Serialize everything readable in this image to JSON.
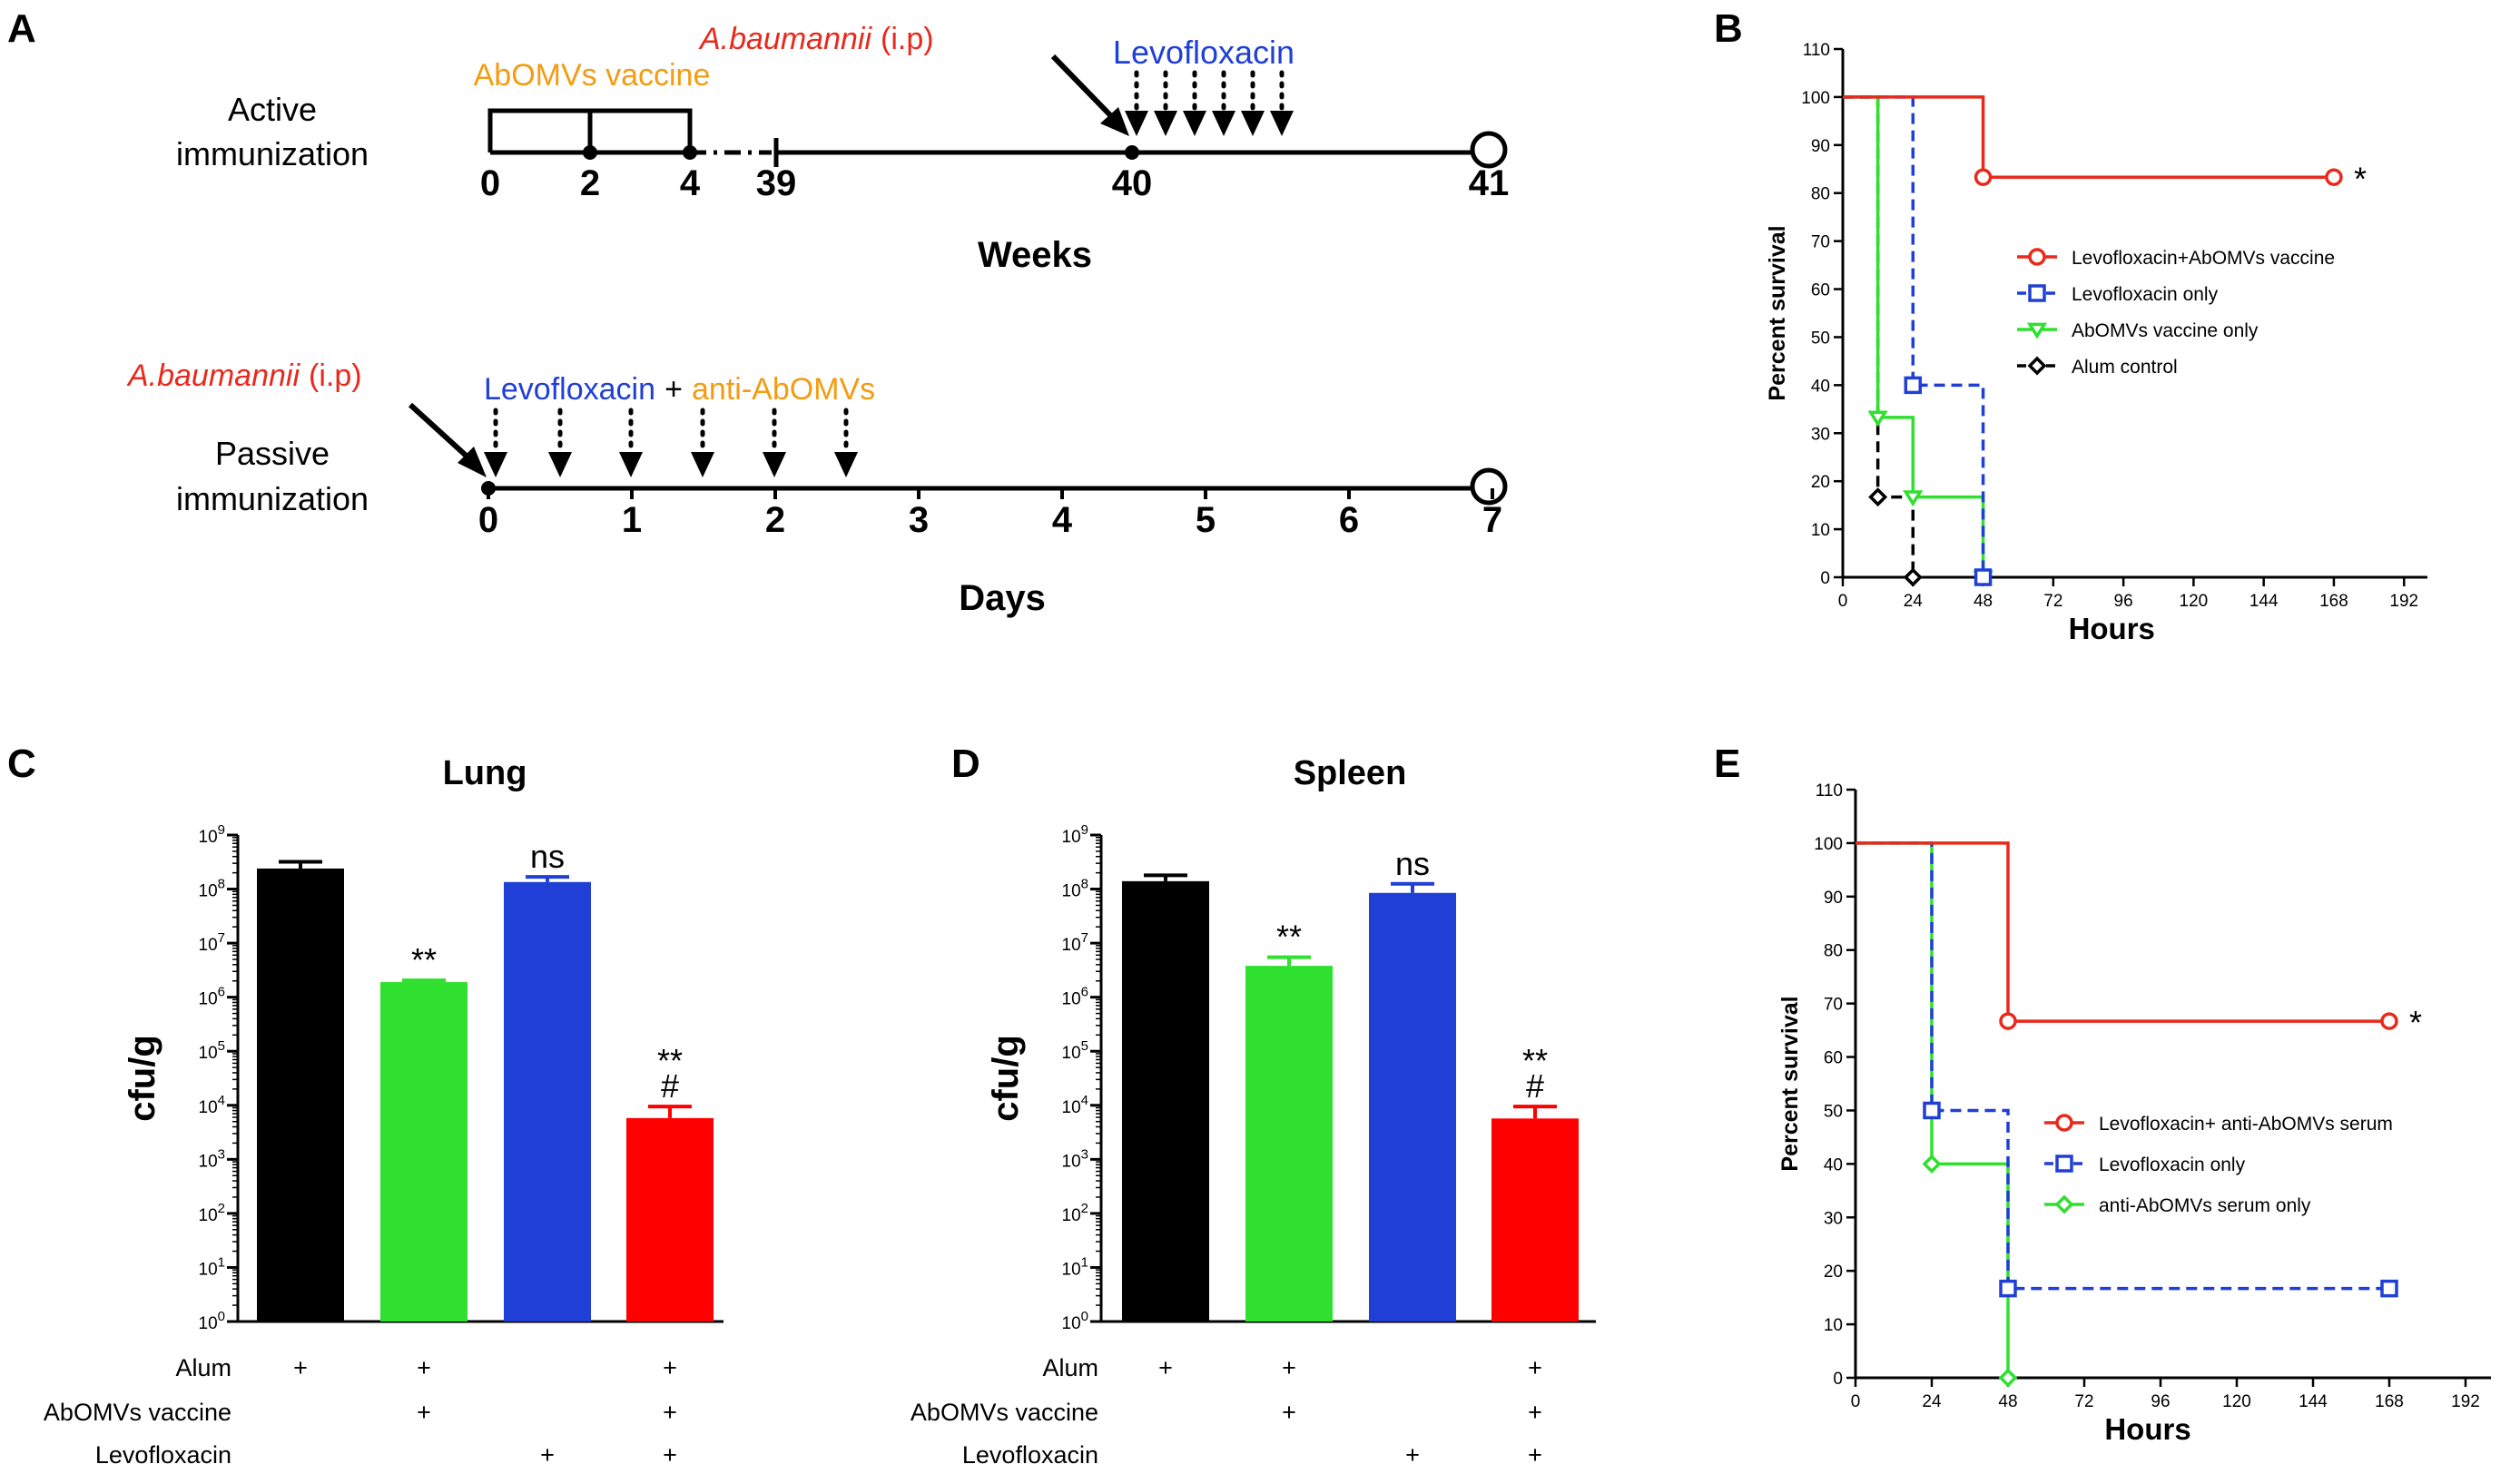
{
  "panel_labels": [
    "A",
    "B",
    "C",
    "D",
    "E"
  ],
  "timeline_active": {
    "label_line1": "Active",
    "label_line2": "immunization",
    "vaccine_label": "AbOMVs vaccine",
    "challenge_label": "A.baumannii",
    "challenge_route": "(i.p)",
    "treatment_label": "Levofloxacin",
    "ticks": [
      "0",
      "2",
      "4",
      "39",
      "40",
      "41"
    ],
    "axis_title": "Weeks",
    "colors": {
      "vaccine": "#F39C12",
      "challenge": "#E8291C",
      "treatment": "#1F3FD6"
    }
  },
  "timeline_passive": {
    "label_line1": "Passive",
    "label_line2": "immunization",
    "challenge_label": "A.baumannii",
    "challenge_route": "(i.p)",
    "treatment_label": "Levofloxacin",
    "plus": "+",
    "serum_label": "anti-AbOMVs",
    "ticks": [
      "0",
      "1",
      "2",
      "3",
      "4",
      "5",
      "6",
      "7"
    ],
    "axis_title": "Days"
  },
  "chart_data": [
    {
      "panel": "B",
      "type": "line",
      "subtype": "kaplan-meier",
      "xlabel": "Hours",
      "ylabel": "Percent survival",
      "xlim": [
        0,
        200
      ],
      "ylim": [
        0,
        110
      ],
      "xticks": [
        0,
        24,
        48,
        72,
        96,
        120,
        144,
        168,
        192
      ],
      "yticks": [
        0,
        10,
        20,
        30,
        40,
        50,
        60,
        70,
        80,
        90,
        100,
        110
      ],
      "legend_position": "center-right",
      "annotation": "*",
      "series": [
        {
          "name": "Levofloxacin+AbOMVs vaccine",
          "color": "#E8291C",
          "marker": "circle",
          "dash": false,
          "steps": [
            [
              0,
              100
            ],
            [
              48,
              83.3
            ],
            [
              168,
              83.3
            ]
          ],
          "marks": [
            [
              48,
              83.3
            ],
            [
              168,
              83.3
            ]
          ]
        },
        {
          "name": "Levofloxacin only",
          "color": "#1F3FD6",
          "marker": "square",
          "dash": true,
          "steps": [
            [
              0,
              100
            ],
            [
              24,
              40
            ],
            [
              48,
              0
            ]
          ],
          "marks": [
            [
              24,
              40
            ],
            [
              48,
              0
            ]
          ]
        },
        {
          "name": "AbOMVs vaccine only",
          "color": "#2FE02F",
          "marker": "triangle-down",
          "dash": false,
          "steps": [
            [
              0,
              100
            ],
            [
              12,
              33.3
            ],
            [
              24,
              16.7
            ],
            [
              48,
              0
            ]
          ],
          "marks": [
            [
              12,
              33.3
            ],
            [
              24,
              16.7
            ],
            [
              48,
              0
            ]
          ]
        },
        {
          "name": "Alum control",
          "color": "#000000",
          "marker": "diamond",
          "dash": true,
          "steps": [
            [
              0,
              100
            ],
            [
              12,
              16.7
            ],
            [
              24,
              0
            ]
          ],
          "marks": [
            [
              12,
              16.7
            ],
            [
              24,
              0
            ]
          ]
        }
      ]
    },
    {
      "panel": "C",
      "type": "bar",
      "title": "Lung",
      "ylabel": "cfu/g",
      "yscale": "log",
      "ylim": [
        1,
        1000000000
      ],
      "ytick_exponents": [
        0,
        1,
        2,
        3,
        4,
        5,
        6,
        7,
        8,
        9
      ],
      "categories": [
        "Alum control",
        "AbOMVs vaccine",
        "Levofloxacin",
        "Levofloxacin+AbOMVs vaccine"
      ],
      "values": [
        240000000,
        1900000,
        135000000,
        5800
      ],
      "errors": [
        320000000,
        2050000,
        168000000,
        9500
      ],
      "colors": [
        "#000000",
        "#2FE02F",
        "#1F3FD6",
        "#FF0000"
      ],
      "annotations": [
        [
          ""
        ],
        [
          "**"
        ],
        [
          "ns"
        ],
        [
          "**",
          "#"
        ]
      ]
    },
    {
      "panel": "D",
      "type": "bar",
      "title": "Spleen",
      "ylabel": "cfu/g",
      "yscale": "log",
      "ylim": [
        1,
        1000000000
      ],
      "ytick_exponents": [
        0,
        1,
        2,
        3,
        4,
        5,
        6,
        7,
        8,
        9
      ],
      "categories": [
        "Alum control",
        "AbOMVs vaccine",
        "Levofloxacin",
        "Levofloxacin+AbOMVs vaccine"
      ],
      "values": [
        140000000,
        3800000,
        85000000,
        5700
      ],
      "errors": [
        180000000,
        5500000,
        125000000,
        9500
      ],
      "colors": [
        "#000000",
        "#2FE02F",
        "#1F3FD6",
        "#FF0000"
      ],
      "annotations": [
        [
          ""
        ],
        [
          "**"
        ],
        [
          "ns"
        ],
        [
          "**",
          "#"
        ]
      ]
    },
    {
      "panel": "E",
      "type": "line",
      "subtype": "kaplan-meier",
      "xlabel": "Hours",
      "ylabel": "Percent survival",
      "xlim": [
        0,
        200
      ],
      "ylim": [
        0,
        110
      ],
      "xticks": [
        0,
        24,
        48,
        72,
        96,
        120,
        144,
        168,
        192
      ],
      "yticks": [
        0,
        10,
        20,
        30,
        40,
        50,
        60,
        70,
        80,
        90,
        100,
        110
      ],
      "legend_position": "center-right",
      "annotation": "*",
      "series": [
        {
          "name": "Levofloxacin+ anti-AbOMVs serum",
          "color": "#E8291C",
          "marker": "circle",
          "dash": false,
          "steps": [
            [
              0,
              100
            ],
            [
              48,
              66.7
            ],
            [
              168,
              66.7
            ]
          ],
          "marks": [
            [
              48,
              66.7
            ],
            [
              168,
              66.7
            ]
          ]
        },
        {
          "name": "Levofloxacin only",
          "color": "#1F3FD6",
          "marker": "square",
          "dash": true,
          "steps": [
            [
              0,
              100
            ],
            [
              24,
              50
            ],
            [
              48,
              16.7
            ],
            [
              168,
              16.7
            ]
          ],
          "marks": [
            [
              24,
              50
            ],
            [
              48,
              16.7
            ],
            [
              168,
              16.7
            ]
          ]
        },
        {
          "name": "anti-AbOMVs serum only",
          "color": "#2FE02F",
          "marker": "diamond",
          "dash": false,
          "steps": [
            [
              0,
              100
            ],
            [
              24,
              40
            ],
            [
              48,
              0
            ]
          ],
          "marks": [
            [
              24,
              40
            ],
            [
              48,
              0
            ]
          ]
        }
      ]
    }
  ],
  "treatment_table": {
    "row_labels": [
      "Alum",
      "AbOMVs vaccine",
      "Levofloxacin"
    ],
    "rows": [
      [
        "+",
        "+",
        "",
        "+"
      ],
      [
        "",
        "+",
        "",
        "+"
      ],
      [
        "",
        "",
        "+",
        "+"
      ]
    ]
  }
}
